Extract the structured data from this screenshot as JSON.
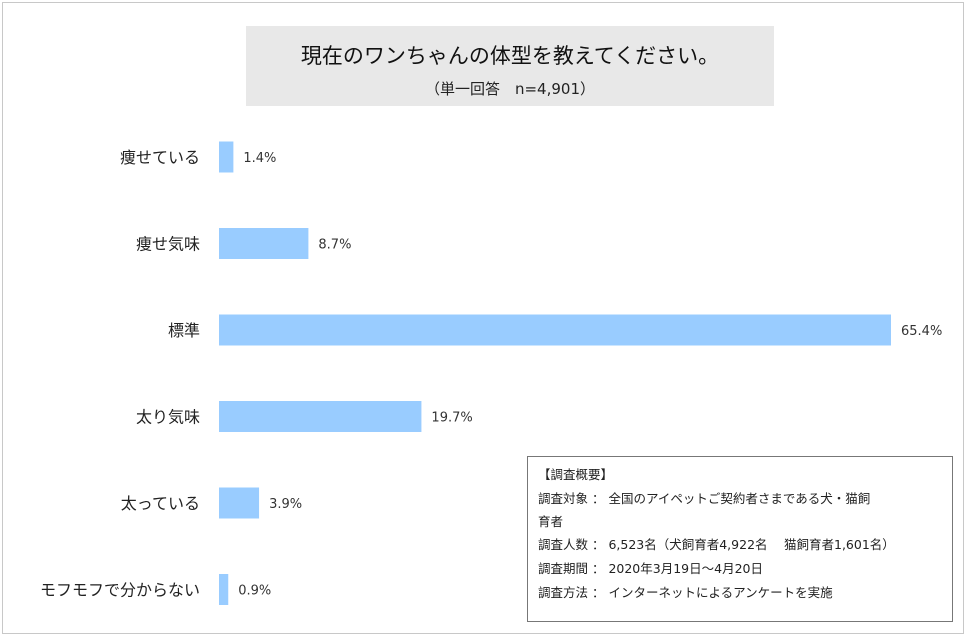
{
  "title": "現在のワンちゃんの体型を教えてください。",
  "subtitle": "（単一回答　n=4,901）",
  "chart_data": {
    "type": "bar",
    "orientation": "horizontal",
    "categories": [
      "痩せている",
      "痩せ気味",
      "標準",
      "太り気味",
      "太っている",
      "モフモフで分からない"
    ],
    "values": [
      1.4,
      8.7,
      65.4,
      19.7,
      3.9,
      0.9
    ],
    "value_labels": [
      "1.4%",
      "8.7%",
      "65.4%",
      "19.7%",
      "3.9%",
      "0.9%"
    ],
    "unit": "%",
    "xlim": [
      0,
      65.4
    ],
    "bar_color": "#99ccff",
    "grid": false,
    "legend": "none"
  },
  "summary": {
    "heading": "【調査概要】",
    "target_line1": "調査対象 ： 全国のアイペットご契約者さまである犬・猫飼",
    "target_line2": "育者",
    "count": "調査人数 ： 6,523名（犬飼育者4,922名　 猫飼育者1,601名）",
    "period": "調査期間 ： 2020年3月19日～4月20日",
    "method": "調査方法 ： インターネットによるアンケートを実施"
  }
}
